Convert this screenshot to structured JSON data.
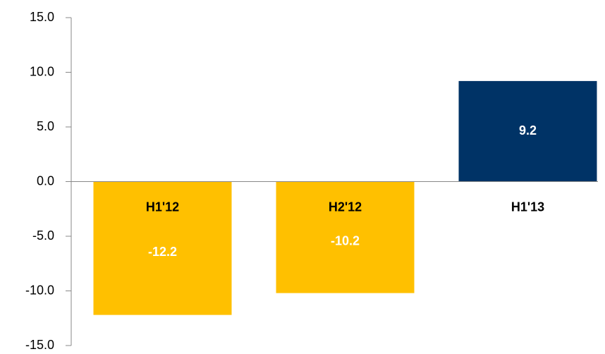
{
  "chart_data": {
    "type": "bar",
    "categories": [
      "H1'12",
      "H2'12",
      "H1'13"
    ],
    "values": [
      -12.2,
      -10.2,
      9.2
    ],
    "colors": [
      "#ffc000",
      "#ffc000",
      "#003366"
    ],
    "ylim": [
      -15,
      15
    ],
    "yticks": [
      {
        "value": -15,
        "label": "-15.0"
      },
      {
        "value": -10,
        "label": "-10.0"
      },
      {
        "value": -5,
        "label": "-5.0"
      },
      {
        "value": 0,
        "label": "0.0"
      },
      {
        "value": 5,
        "label": "5.0"
      },
      {
        "value": 10,
        "label": "10.0"
      },
      {
        "value": 15,
        "label": "15.0"
      }
    ],
    "grid": false
  }
}
